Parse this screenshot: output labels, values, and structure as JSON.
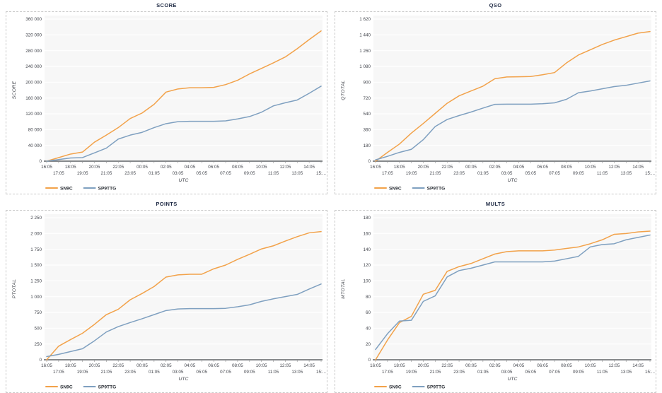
{
  "page": {
    "background": "#ffffff"
  },
  "colors": {
    "plot_bg": "#F7F7F7",
    "grid": "#FFFFFF",
    "axis": "#75787B",
    "tick_text": "#43464D",
    "title_text": "#1F2A44",
    "legend_text": "#2A2E35",
    "panel_border": "#C9C9C9",
    "series_orange": "#F2A24A",
    "series_blue": "#7FA0C0"
  },
  "legend": {
    "items": [
      {
        "label": "SN9C",
        "color": "#F2A24A"
      },
      {
        "label": "SP9TTG",
        "color": "#7FA0C0"
      }
    ]
  },
  "axis": {
    "x_label": "UTC",
    "x_categories": [
      "16:05",
      "17:05",
      "18:05",
      "19:05",
      "20:05",
      "21:05",
      "22:05",
      "23:05",
      "00:05",
      "01:05",
      "02:05",
      "03:05",
      "04:05",
      "05:05",
      "06:05",
      "07:05",
      "08:05",
      "09:05",
      "10:05",
      "11:05",
      "12:05",
      "13:05",
      "14:05",
      "15:05"
    ],
    "x_display_row1": [
      "16:05",
      "18:05",
      "20:05",
      "22:05",
      "00:05",
      "02:05",
      "04:05",
      "06:05",
      "08:05",
      "10:05",
      "12:05",
      "14:05"
    ],
    "x_display_row2": [
      "17:05",
      "19:05",
      "21:05",
      "23:05",
      "01:05",
      "03:05",
      "05:05",
      "07:05",
      "09:05",
      "11:05",
      "13:05",
      "15:..."
    ]
  },
  "chart_data": [
    {
      "type": "line",
      "title": "SCORE",
      "ylabel": "SCORE",
      "xlabel": "UTC",
      "ylim": [
        0,
        360000
      ],
      "ystep": 40000,
      "ytick_labels": [
        "0",
        "40 000",
        "80 000",
        "120 000",
        "160 000",
        "200 000",
        "240 000",
        "280 000",
        "320 000",
        "360 000"
      ],
      "categories": [
        "16:05",
        "17:05",
        "18:05",
        "19:05",
        "20:05",
        "21:05",
        "22:05",
        "23:05",
        "00:05",
        "01:05",
        "02:05",
        "03:05",
        "04:05",
        "05:05",
        "06:05",
        "07:05",
        "08:05",
        "09:05",
        "10:05",
        "11:05",
        "12:05",
        "13:05",
        "14:05",
        "15:05"
      ],
      "series": [
        {
          "name": "SN9C",
          "values": [
            0,
            9000,
            18000,
            23000,
            48000,
            66000,
            85000,
            108000,
            122000,
            144000,
            175000,
            183000,
            186000,
            186000,
            187000,
            194000,
            205000,
            221000,
            235000,
            249000,
            264000,
            285000,
            308000,
            330000
          ]
        },
        {
          "name": "SP9TTG",
          "values": [
            0,
            4000,
            8000,
            9000,
            21000,
            33000,
            56000,
            66000,
            73000,
            85000,
            95000,
            100000,
            101000,
            101000,
            101000,
            102000,
            107000,
            113000,
            124000,
            140000,
            148000,
            155000,
            172000,
            190000
          ]
        }
      ]
    },
    {
      "type": "line",
      "title": "QSO",
      "ylabel": "QTOTAL",
      "xlabel": "UTC",
      "ylim": [
        0,
        1620
      ],
      "ystep": 180,
      "ytick_labels": [
        "0",
        "180",
        "360",
        "540",
        "720",
        "900",
        "1 080",
        "1 260",
        "1 440",
        "1 620"
      ],
      "categories": [
        "16:05",
        "17:05",
        "18:05",
        "19:05",
        "20:05",
        "21:05",
        "22:05",
        "23:05",
        "00:05",
        "01:05",
        "02:05",
        "03:05",
        "04:05",
        "05:05",
        "06:05",
        "07:05",
        "08:05",
        "09:05",
        "10:05",
        "11:05",
        "12:05",
        "13:05",
        "14:05",
        "15:05"
      ],
      "series": [
        {
          "name": "SN9C",
          "values": [
            0,
            100,
            195,
            320,
            430,
            545,
            660,
            745,
            800,
            855,
            940,
            960,
            962,
            965,
            985,
            1010,
            1120,
            1210,
            1270,
            1330,
            1380,
            1420,
            1460,
            1478
          ]
        },
        {
          "name": "SP9TTG",
          "values": [
            15,
            55,
            100,
            135,
            245,
            395,
            475,
            520,
            560,
            605,
            648,
            650,
            650,
            650,
            655,
            665,
            705,
            780,
            800,
            825,
            850,
            865,
            890,
            915
          ]
        }
      ]
    },
    {
      "type": "line",
      "title": "POINTS",
      "ylabel": "PTOTAL",
      "xlabel": "UTC",
      "ylim": [
        0,
        2250
      ],
      "ystep": 250,
      "ytick_labels": [
        "0",
        "250",
        "500",
        "750",
        "1 000",
        "1 250",
        "1 500",
        "1 750",
        "2 000",
        "2 250"
      ],
      "categories": [
        "16:05",
        "17:05",
        "18:05",
        "19:05",
        "20:05",
        "21:05",
        "22:05",
        "23:05",
        "00:05",
        "01:05",
        "02:05",
        "03:05",
        "04:05",
        "05:05",
        "06:05",
        "07:05",
        "08:05",
        "09:05",
        "10:05",
        "11:05",
        "12:05",
        "13:05",
        "14:05",
        "15:05"
      ],
      "series": [
        {
          "name": "SN9C",
          "values": [
            0,
            215,
            320,
            420,
            560,
            715,
            800,
            950,
            1050,
            1160,
            1310,
            1345,
            1355,
            1355,
            1440,
            1500,
            1590,
            1670,
            1755,
            1805,
            1880,
            1950,
            2010,
            2030
          ]
        },
        {
          "name": "SP9TTG",
          "values": [
            50,
            85,
            130,
            175,
            300,
            440,
            525,
            590,
            650,
            715,
            780,
            805,
            810,
            810,
            810,
            815,
            840,
            870,
            925,
            965,
            1000,
            1035,
            1120,
            1200
          ]
        }
      ]
    },
    {
      "type": "line",
      "title": "MULTS",
      "ylabel": "MTOTAL",
      "xlabel": "UTC",
      "ylim": [
        0,
        180
      ],
      "ystep": 20,
      "ytick_labels": [
        "0",
        "20",
        "40",
        "60",
        "80",
        "100",
        "120",
        "140",
        "160",
        "180"
      ],
      "categories": [
        "16:05",
        "17:05",
        "18:05",
        "19:05",
        "20:05",
        "21:05",
        "22:05",
        "23:05",
        "00:05",
        "01:05",
        "02:05",
        "03:05",
        "04:05",
        "05:05",
        "06:05",
        "07:05",
        "08:05",
        "09:05",
        "10:05",
        "11:05",
        "12:05",
        "13:05",
        "14:05",
        "15:05"
      ],
      "series": [
        {
          "name": "SN9C",
          "values": [
            0,
            25,
            47,
            55,
            83,
            88,
            112,
            118,
            122,
            128,
            134,
            137,
            138,
            138,
            138,
            139,
            141,
            143,
            147,
            152,
            159,
            160,
            162,
            163
          ]
        },
        {
          "name": "SP9TTG",
          "values": [
            13,
            33,
            49,
            50,
            74,
            81,
            105,
            113,
            116,
            120,
            124,
            124,
            124,
            124,
            124,
            125,
            128,
            131,
            143,
            146,
            147,
            152,
            155,
            158
          ]
        }
      ]
    }
  ]
}
